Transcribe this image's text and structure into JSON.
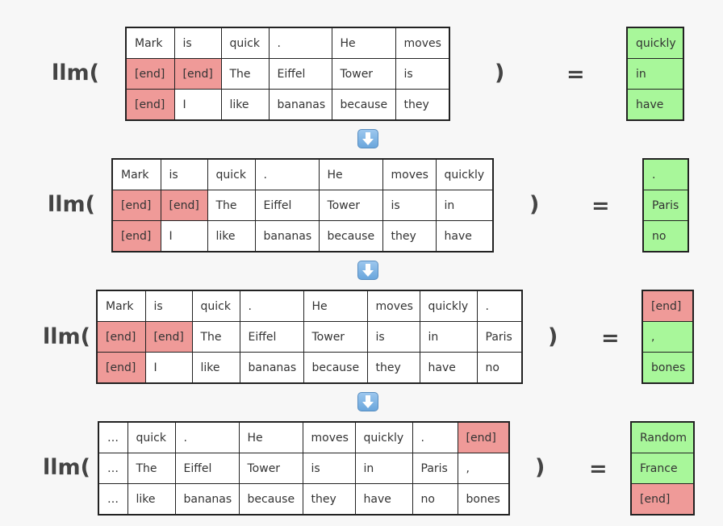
{
  "fn_label": "llm(",
  "close_paren": ")",
  "equals": "=",
  "steps": [
    {
      "rows": [
        [
          "Mark",
          "is",
          "quick",
          ".",
          "He",
          "moves"
        ],
        [
          "[end]",
          "[end]",
          "The",
          "Eiffel",
          "Tower",
          "is"
        ],
        [
          "[end]",
          "I",
          "like",
          "bananas",
          "because",
          "they"
        ]
      ],
      "outputs": [
        "quickly",
        "in",
        "have"
      ]
    },
    {
      "rows": [
        [
          "Mark",
          "is",
          "quick",
          ".",
          "He",
          "moves",
          "quickly"
        ],
        [
          "[end]",
          "[end]",
          "The",
          "Eiffel",
          "Tower",
          "is",
          "in"
        ],
        [
          "[end]",
          "I",
          "like",
          "bananas",
          "because",
          "they",
          "have"
        ]
      ],
      "outputs": [
        ".",
        "Paris",
        "no"
      ]
    },
    {
      "rows": [
        [
          "Mark",
          "is",
          "quick",
          ".",
          "He",
          "moves",
          "quickly",
          "."
        ],
        [
          "[end]",
          "[end]",
          "The",
          "Eiffel",
          "Tower",
          "is",
          "in",
          "Paris"
        ],
        [
          "[end]",
          "I",
          "like",
          "bananas",
          "because",
          "they",
          "have",
          "no"
        ]
      ],
      "outputs": [
        "[end]",
        ",",
        "bones"
      ]
    },
    {
      "rows": [
        [
          "…",
          "quick",
          ".",
          "He",
          "moves",
          "quickly",
          ".",
          "[end]"
        ],
        [
          "…",
          "The",
          "Eiffel",
          "Tower",
          "is",
          "in",
          "Paris",
          ","
        ],
        [
          "…",
          "like",
          "bananas",
          "because",
          "they",
          "have",
          "no",
          "bones"
        ]
      ],
      "outputs": [
        "Random",
        "France",
        "[end]"
      ]
    }
  ],
  "colors": {
    "end_token": "#ef9a98",
    "output_new": "#a8f79a",
    "arrow": "#6aa6dc"
  },
  "arrow_icon": "down-arrow-icon"
}
